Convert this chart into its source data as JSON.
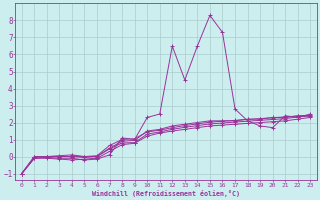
{
  "xlabel": "Windchill (Refroidissement éolien,°C)",
  "background_color": "#cceeee",
  "grid_color": "#aacccc",
  "line_color": "#993399",
  "xlim": [
    -0.5,
    23.5
  ],
  "ylim": [
    -1.4,
    9.0
  ],
  "xticks": [
    0,
    1,
    2,
    3,
    4,
    5,
    6,
    7,
    8,
    9,
    10,
    11,
    12,
    13,
    14,
    15,
    16,
    17,
    18,
    19,
    20,
    21,
    22,
    23
  ],
  "yticks": [
    -1,
    0,
    1,
    2,
    3,
    4,
    5,
    6,
    7,
    8
  ],
  "series": [
    [
      -1.0,
      -0.1,
      -0.05,
      -0.1,
      -0.1,
      -0.2,
      -0.15,
      0.1,
      1.1,
      1.0,
      2.3,
      2.5,
      6.5,
      4.5,
      6.5,
      8.3,
      7.3,
      2.8,
      2.1,
      1.8,
      1.7,
      2.4,
      2.3,
      2.5
    ],
    [
      -1.0,
      -0.05,
      0.0,
      0.0,
      0.0,
      -0.05,
      0.0,
      0.5,
      0.9,
      0.95,
      1.5,
      1.6,
      1.8,
      1.9,
      2.0,
      2.1,
      2.1,
      2.1,
      2.2,
      2.2,
      2.3,
      2.3,
      2.4,
      2.4
    ],
    [
      -1.0,
      0.0,
      0.0,
      0.05,
      0.1,
      0.0,
      0.05,
      0.65,
      1.0,
      1.05,
      1.45,
      1.55,
      1.7,
      1.82,
      1.92,
      2.02,
      2.08,
      2.13,
      2.18,
      2.23,
      2.28,
      2.33,
      2.38,
      2.43
    ],
    [
      -1.0,
      0.0,
      0.0,
      0.0,
      0.0,
      0.0,
      0.0,
      0.45,
      0.8,
      0.82,
      1.32,
      1.45,
      1.6,
      1.72,
      1.82,
      1.92,
      1.97,
      2.03,
      2.08,
      2.13,
      2.18,
      2.23,
      2.33,
      2.38
    ],
    [
      -1.0,
      -0.1,
      -0.1,
      -0.15,
      -0.2,
      -0.15,
      -0.1,
      0.3,
      0.7,
      0.78,
      1.2,
      1.38,
      1.5,
      1.6,
      1.7,
      1.8,
      1.85,
      1.9,
      1.95,
      2.0,
      2.05,
      2.1,
      2.2,
      2.3
    ]
  ]
}
